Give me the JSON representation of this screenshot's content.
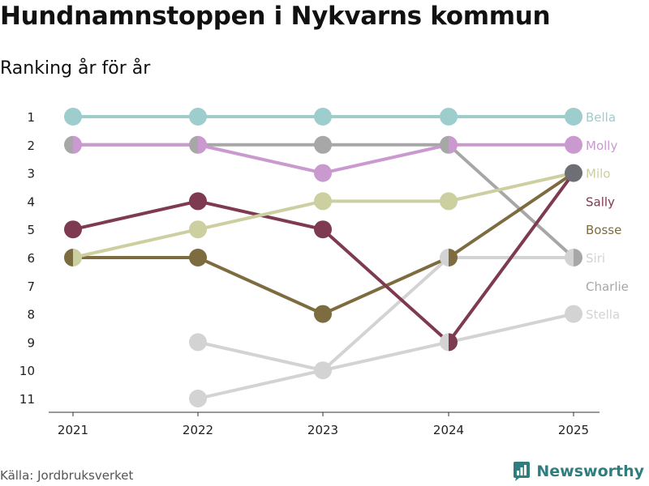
{
  "title": "Hundnamnstoppen i Nykvarns kommun",
  "subtitle": "Ranking år för år",
  "source": "Källa: Jordbruksverket",
  "brand": "Newsworthy",
  "brand_color": "#2f7d7e",
  "chart_data": {
    "type": "line",
    "title": "Hundnamnstoppen i Nykvarns kommun",
    "subtitle": "Ranking år för år",
    "categories": [
      "2021",
      "2022",
      "2023",
      "2024",
      "2025"
    ],
    "y_ticks": [
      1,
      2,
      3,
      4,
      5,
      6,
      7,
      8,
      9,
      10,
      11
    ],
    "ylim": [
      1,
      11
    ],
    "y_inverted": true,
    "series": [
      {
        "name": "Stella",
        "color": "#d3d3d3",
        "values": [
          null,
          11,
          10,
          9,
          8
        ]
      },
      {
        "name": "Siri",
        "color": "#d3d3d3",
        "values": [
          null,
          9,
          10,
          6,
          6
        ]
      },
      {
        "name": "Charlie",
        "color": "#a7a7a7",
        "values": [
          2,
          2,
          2,
          2,
          6
        ]
      },
      {
        "name": "Bosse",
        "color": "#7d6c40",
        "values": [
          6,
          6,
          8,
          6,
          3
        ]
      },
      {
        "name": "Sally",
        "color": "#7e3a50",
        "values": [
          5,
          4,
          5,
          9,
          3
        ]
      },
      {
        "name": "Milo",
        "color": "#cccf9f",
        "values": [
          6,
          5,
          4,
          4,
          3
        ]
      },
      {
        "name": "Molly",
        "color": "#c999cf",
        "values": [
          2,
          2,
          3,
          2,
          2
        ]
      },
      {
        "name": "Bella",
        "color": "#9dcdcd",
        "values": [
          1,
          1,
          1,
          1,
          1
        ]
      }
    ],
    "end_labels": [
      {
        "name": "Bella",
        "rank": 1,
        "color": "#9dcdcd"
      },
      {
        "name": "Molly",
        "rank": 2,
        "color": "#c999cf"
      },
      {
        "name": "Milo",
        "rank": 3,
        "color": "#cccf9f"
      },
      {
        "name": "Sally",
        "rank": 4,
        "color": "#7e3a50"
      },
      {
        "name": "Bosse",
        "rank": 5,
        "color": "#7d6c40"
      },
      {
        "name": "Siri",
        "rank": 6,
        "color": "#d3d3d3"
      },
      {
        "name": "Charlie",
        "rank": 7,
        "color": "#a7a7a7"
      },
      {
        "name": "Stella",
        "rank": 8,
        "color": "#d3d3d3"
      }
    ],
    "shared_point_color": "#6e6e75"
  }
}
